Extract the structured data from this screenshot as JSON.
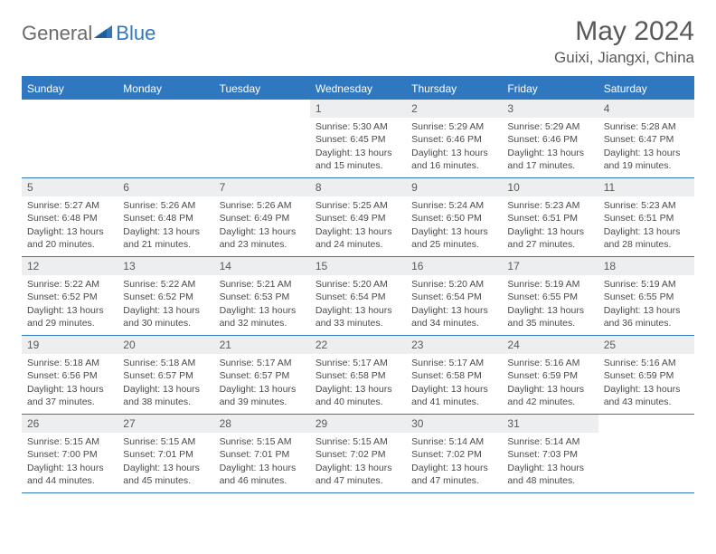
{
  "brand": {
    "part1": "General",
    "part2": "Blue"
  },
  "title": "May 2024",
  "location": "Guixi, Jiangxi, China",
  "colors": {
    "accent": "#2f78bf",
    "header_text": "#ffffff",
    "day_bar_bg": "#eceeef",
    "text": "#4a4a4a",
    "title_text": "#595959"
  },
  "day_names": [
    "Sunday",
    "Monday",
    "Tuesday",
    "Wednesday",
    "Thursday",
    "Friday",
    "Saturday"
  ],
  "weeks": [
    [
      {
        "n": "",
        "sr": "",
        "ss": "",
        "dl": ""
      },
      {
        "n": "",
        "sr": "",
        "ss": "",
        "dl": ""
      },
      {
        "n": "",
        "sr": "",
        "ss": "",
        "dl": ""
      },
      {
        "n": "1",
        "sr": "Sunrise: 5:30 AM",
        "ss": "Sunset: 6:45 PM",
        "dl": "Daylight: 13 hours and 15 minutes."
      },
      {
        "n": "2",
        "sr": "Sunrise: 5:29 AM",
        "ss": "Sunset: 6:46 PM",
        "dl": "Daylight: 13 hours and 16 minutes."
      },
      {
        "n": "3",
        "sr": "Sunrise: 5:29 AM",
        "ss": "Sunset: 6:46 PM",
        "dl": "Daylight: 13 hours and 17 minutes."
      },
      {
        "n": "4",
        "sr": "Sunrise: 5:28 AM",
        "ss": "Sunset: 6:47 PM",
        "dl": "Daylight: 13 hours and 19 minutes."
      }
    ],
    [
      {
        "n": "5",
        "sr": "Sunrise: 5:27 AM",
        "ss": "Sunset: 6:48 PM",
        "dl": "Daylight: 13 hours and 20 minutes."
      },
      {
        "n": "6",
        "sr": "Sunrise: 5:26 AM",
        "ss": "Sunset: 6:48 PM",
        "dl": "Daylight: 13 hours and 21 minutes."
      },
      {
        "n": "7",
        "sr": "Sunrise: 5:26 AM",
        "ss": "Sunset: 6:49 PM",
        "dl": "Daylight: 13 hours and 23 minutes."
      },
      {
        "n": "8",
        "sr": "Sunrise: 5:25 AM",
        "ss": "Sunset: 6:49 PM",
        "dl": "Daylight: 13 hours and 24 minutes."
      },
      {
        "n": "9",
        "sr": "Sunrise: 5:24 AM",
        "ss": "Sunset: 6:50 PM",
        "dl": "Daylight: 13 hours and 25 minutes."
      },
      {
        "n": "10",
        "sr": "Sunrise: 5:23 AM",
        "ss": "Sunset: 6:51 PM",
        "dl": "Daylight: 13 hours and 27 minutes."
      },
      {
        "n": "11",
        "sr": "Sunrise: 5:23 AM",
        "ss": "Sunset: 6:51 PM",
        "dl": "Daylight: 13 hours and 28 minutes."
      }
    ],
    [
      {
        "n": "12",
        "sr": "Sunrise: 5:22 AM",
        "ss": "Sunset: 6:52 PM",
        "dl": "Daylight: 13 hours and 29 minutes."
      },
      {
        "n": "13",
        "sr": "Sunrise: 5:22 AM",
        "ss": "Sunset: 6:52 PM",
        "dl": "Daylight: 13 hours and 30 minutes."
      },
      {
        "n": "14",
        "sr": "Sunrise: 5:21 AM",
        "ss": "Sunset: 6:53 PM",
        "dl": "Daylight: 13 hours and 32 minutes."
      },
      {
        "n": "15",
        "sr": "Sunrise: 5:20 AM",
        "ss": "Sunset: 6:54 PM",
        "dl": "Daylight: 13 hours and 33 minutes."
      },
      {
        "n": "16",
        "sr": "Sunrise: 5:20 AM",
        "ss": "Sunset: 6:54 PM",
        "dl": "Daylight: 13 hours and 34 minutes."
      },
      {
        "n": "17",
        "sr": "Sunrise: 5:19 AM",
        "ss": "Sunset: 6:55 PM",
        "dl": "Daylight: 13 hours and 35 minutes."
      },
      {
        "n": "18",
        "sr": "Sunrise: 5:19 AM",
        "ss": "Sunset: 6:55 PM",
        "dl": "Daylight: 13 hours and 36 minutes."
      }
    ],
    [
      {
        "n": "19",
        "sr": "Sunrise: 5:18 AM",
        "ss": "Sunset: 6:56 PM",
        "dl": "Daylight: 13 hours and 37 minutes."
      },
      {
        "n": "20",
        "sr": "Sunrise: 5:18 AM",
        "ss": "Sunset: 6:57 PM",
        "dl": "Daylight: 13 hours and 38 minutes."
      },
      {
        "n": "21",
        "sr": "Sunrise: 5:17 AM",
        "ss": "Sunset: 6:57 PM",
        "dl": "Daylight: 13 hours and 39 minutes."
      },
      {
        "n": "22",
        "sr": "Sunrise: 5:17 AM",
        "ss": "Sunset: 6:58 PM",
        "dl": "Daylight: 13 hours and 40 minutes."
      },
      {
        "n": "23",
        "sr": "Sunrise: 5:17 AM",
        "ss": "Sunset: 6:58 PM",
        "dl": "Daylight: 13 hours and 41 minutes."
      },
      {
        "n": "24",
        "sr": "Sunrise: 5:16 AM",
        "ss": "Sunset: 6:59 PM",
        "dl": "Daylight: 13 hours and 42 minutes."
      },
      {
        "n": "25",
        "sr": "Sunrise: 5:16 AM",
        "ss": "Sunset: 6:59 PM",
        "dl": "Daylight: 13 hours and 43 minutes."
      }
    ],
    [
      {
        "n": "26",
        "sr": "Sunrise: 5:15 AM",
        "ss": "Sunset: 7:00 PM",
        "dl": "Daylight: 13 hours and 44 minutes."
      },
      {
        "n": "27",
        "sr": "Sunrise: 5:15 AM",
        "ss": "Sunset: 7:01 PM",
        "dl": "Daylight: 13 hours and 45 minutes."
      },
      {
        "n": "28",
        "sr": "Sunrise: 5:15 AM",
        "ss": "Sunset: 7:01 PM",
        "dl": "Daylight: 13 hours and 46 minutes."
      },
      {
        "n": "29",
        "sr": "Sunrise: 5:15 AM",
        "ss": "Sunset: 7:02 PM",
        "dl": "Daylight: 13 hours and 47 minutes."
      },
      {
        "n": "30",
        "sr": "Sunrise: 5:14 AM",
        "ss": "Sunset: 7:02 PM",
        "dl": "Daylight: 13 hours and 47 minutes."
      },
      {
        "n": "31",
        "sr": "Sunrise: 5:14 AM",
        "ss": "Sunset: 7:03 PM",
        "dl": "Daylight: 13 hours and 48 minutes."
      },
      {
        "n": "",
        "sr": "",
        "ss": "",
        "dl": ""
      }
    ]
  ]
}
